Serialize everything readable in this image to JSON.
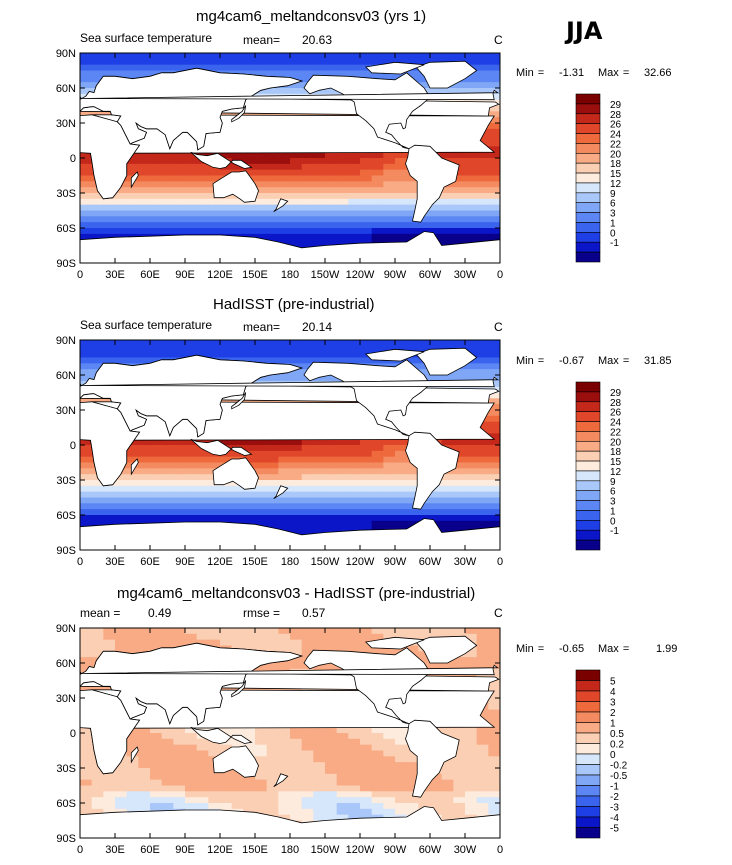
{
  "season": "JJA",
  "colors": {
    "land": "#ffffff",
    "coastline": "#000000",
    "abs_scale": [
      "#08008a",
      "#0b16c8",
      "#1f3fe6",
      "#3a64ee",
      "#5b86f3",
      "#7fa7f6",
      "#a9c7f8",
      "#d6e6fb",
      "#fdebdd",
      "#fbcfb3",
      "#f8ab85",
      "#f48a5f",
      "#ee6a3d",
      "#e0472a",
      "#c3281b",
      "#9a0e0e",
      "#7a0000"
    ],
    "diff_scale": [
      "#08008a",
      "#0b16c8",
      "#1f3fe6",
      "#3a64ee",
      "#5b86f3",
      "#7fa7f6",
      "#a9c7f8",
      "#d6e6fb",
      "#fdebdd",
      "#fbcfb3",
      "#f8ab85",
      "#f48a5f",
      "#ee6a3d",
      "#e0472a",
      "#c3281b",
      "#7a0000"
    ]
  },
  "panels": [
    {
      "title": "mg4cam6_meltandconsv03 (yrs 1)",
      "left_label": "Sea surface temperature",
      "mean_label": "mean=",
      "mean_value": "20.63",
      "unit": "C",
      "min_label": "Min =",
      "min_value": "-1.31",
      "max_label": "Max =",
      "max_value": "32.66"
    },
    {
      "title": "HadISST (pre-industrial)",
      "left_label": "Sea surface temperature",
      "mean_label": "mean=",
      "mean_value": "20.14",
      "unit": "C",
      "min_label": "Min =",
      "min_value": "-0.67",
      "max_label": "Max =",
      "max_value": "31.85"
    },
    {
      "title": "mg4cam6_meltandconsv03 - HadISST (pre-industrial)",
      "mean_label": "mean =",
      "mean_value": "0.49",
      "rmse_label": "rmse =",
      "rmse_value": "0.57",
      "unit": "C",
      "min_label": "Min =",
      "min_value": "-0.65",
      "max_label": "Max =",
      "max_value": "1.99"
    }
  ],
  "chart_data": [
    {
      "type": "heatmap",
      "title": "mg4cam6_meltandconsv03 (yrs 1)",
      "variable": "Sea surface temperature",
      "units": "C",
      "mean": 20.63,
      "min": -1.31,
      "max": 32.66,
      "x_ticks": [
        "0",
        "30E",
        "60E",
        "90E",
        "120E",
        "150E",
        "180",
        "150W",
        "120W",
        "90W",
        "60W",
        "30W",
        "0"
      ],
      "y_ticks": [
        "90N",
        "60N",
        "30N",
        "0",
        "30S",
        "60S",
        "90S"
      ],
      "xlim": [
        0,
        360
      ],
      "ylim": [
        -90,
        90
      ],
      "colorbar_levels": [
        "29",
        "28",
        "26",
        "24",
        "22",
        "20",
        "18",
        "15",
        "12",
        "9",
        "6",
        "3",
        "1",
        "0",
        "-1"
      ],
      "zonal_profile": [
        {
          "lat": 80,
          "value": 0
        },
        {
          "lat": 60,
          "value": 8
        },
        {
          "lat": 40,
          "value": 20
        },
        {
          "lat": 20,
          "value": 27
        },
        {
          "lat": 5,
          "value": 29
        },
        {
          "lat": -10,
          "value": 27
        },
        {
          "lat": -30,
          "value": 20
        },
        {
          "lat": -45,
          "value": 10
        },
        {
          "lat": -55,
          "value": 3
        },
        {
          "lat": -65,
          "value": -1
        }
      ]
    },
    {
      "type": "heatmap",
      "title": "HadISST (pre-industrial)",
      "variable": "Sea surface temperature",
      "units": "C",
      "mean": 20.14,
      "min": -0.67,
      "max": 31.85,
      "x_ticks": [
        "0",
        "30E",
        "60E",
        "90E",
        "120E",
        "150E",
        "180",
        "150W",
        "120W",
        "90W",
        "60W",
        "30W",
        "0"
      ],
      "y_ticks": [
        "90N",
        "60N",
        "30N",
        "0",
        "30S",
        "60S",
        "90S"
      ],
      "xlim": [
        0,
        360
      ],
      "ylim": [
        -90,
        90
      ],
      "colorbar_levels": [
        "29",
        "28",
        "26",
        "24",
        "22",
        "20",
        "18",
        "15",
        "12",
        "9",
        "6",
        "3",
        "1",
        "0",
        "-1"
      ],
      "zonal_profile": [
        {
          "lat": 80,
          "value": 0
        },
        {
          "lat": 60,
          "value": 7
        },
        {
          "lat": 40,
          "value": 19
        },
        {
          "lat": 20,
          "value": 27
        },
        {
          "lat": 5,
          "value": 28.5
        },
        {
          "lat": -10,
          "value": 26
        },
        {
          "lat": -30,
          "value": 19
        },
        {
          "lat": -45,
          "value": 9
        },
        {
          "lat": -55,
          "value": 2
        },
        {
          "lat": -65,
          "value": -1
        }
      ]
    },
    {
      "type": "heatmap",
      "title": "mg4cam6_meltandconsv03 - HadISST (pre-industrial)",
      "units": "C",
      "mean": 0.49,
      "rmse": 0.57,
      "min": -0.65,
      "max": 1.99,
      "x_ticks": [
        "0",
        "30E",
        "60E",
        "90E",
        "120E",
        "150E",
        "180",
        "150W",
        "120W",
        "90W",
        "60W",
        "30W",
        "0"
      ],
      "y_ticks": [
        "90N",
        "60N",
        "30N",
        "0",
        "30S",
        "60S",
        "90S"
      ],
      "xlim": [
        0,
        360
      ],
      "ylim": [
        -90,
        90
      ],
      "colorbar_levels": [
        "5",
        "4",
        "3",
        "2",
        "1",
        "0.5",
        "0.2",
        "0",
        "-0.2",
        "-0.5",
        "-1",
        "-2",
        "-3",
        "-4",
        "-5"
      ],
      "zonal_profile": [
        {
          "lat": 80,
          "value": 0.5
        },
        {
          "lat": 60,
          "value": 0.8
        },
        {
          "lat": 40,
          "value": 0.6
        },
        {
          "lat": 20,
          "value": 0.4
        },
        {
          "lat": 5,
          "value": 0.3
        },
        {
          "lat": -10,
          "value": 0.4
        },
        {
          "lat": -30,
          "value": 0.5
        },
        {
          "lat": -45,
          "value": 0.6
        },
        {
          "lat": -55,
          "value": 0.1
        },
        {
          "lat": -65,
          "value": 0
        }
      ]
    }
  ]
}
